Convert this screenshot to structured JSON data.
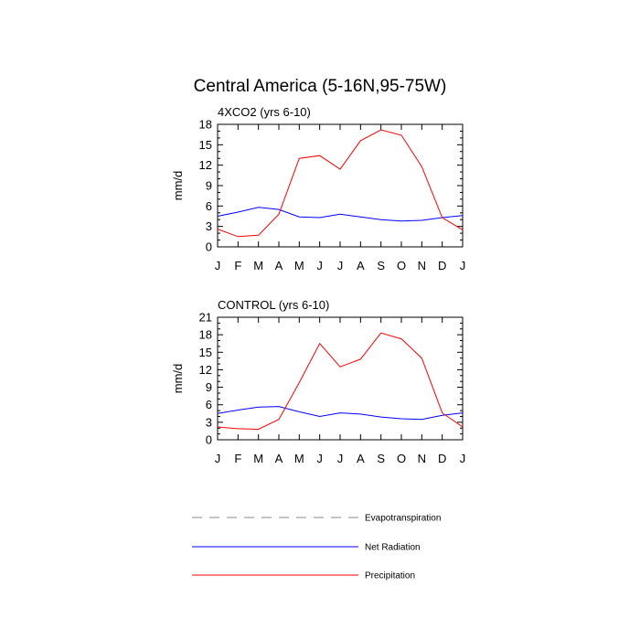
{
  "title": "Central America (5-16N,95-75W)",
  "legend": {
    "placement": "bottom",
    "entries": [
      {
        "label": "Evapotranspiration",
        "color": "#888888",
        "style": "dashed"
      },
      {
        "label": "Net Radiation",
        "color": "#0000ff",
        "style": "solid"
      },
      {
        "label": "Precipitation",
        "color": "#ff0000",
        "style": "solid"
      }
    ]
  },
  "chart_data": [
    {
      "type": "line",
      "title": "4XCO2 (yrs 6-10)",
      "ylabel": "mm/d",
      "xlabel": "",
      "x": [
        "J",
        "F",
        "M",
        "A",
        "M",
        "J",
        "J",
        "A",
        "S",
        "O",
        "N",
        "D",
        "J"
      ],
      "ylim": [
        0,
        18
      ],
      "yticks": [
        0,
        3,
        6,
        9,
        12,
        15,
        18
      ],
      "series": [
        {
          "name": "Net Radiation",
          "color": "#0000ff",
          "values": [
            4.5,
            5.1,
            5.8,
            5.5,
            4.4,
            4.3,
            4.8,
            4.4,
            4.0,
            3.8,
            3.9,
            4.3,
            4.6
          ]
        },
        {
          "name": "Precipitation",
          "color": "#ff0000",
          "values": [
            2.6,
            1.5,
            1.7,
            4.8,
            13.0,
            13.4,
            11.4,
            15.6,
            17.2,
            16.4,
            11.8,
            4.3,
            2.5
          ]
        }
      ]
    },
    {
      "type": "line",
      "title": "CONTROL (yrs 6-10)",
      "ylabel": "mm/d",
      "xlabel": "",
      "x": [
        "J",
        "F",
        "M",
        "A",
        "M",
        "J",
        "J",
        "A",
        "S",
        "O",
        "N",
        "D",
        "J"
      ],
      "ylim": [
        0,
        21
      ],
      "yticks": [
        0,
        3,
        6,
        9,
        12,
        15,
        18,
        21
      ],
      "series": [
        {
          "name": "Net Radiation",
          "color": "#0000ff",
          "values": [
            4.5,
            5.1,
            5.6,
            5.7,
            4.8,
            4.0,
            4.6,
            4.4,
            3.9,
            3.6,
            3.5,
            4.2,
            4.6
          ]
        },
        {
          "name": "Precipitation",
          "color": "#ff0000",
          "values": [
            2.2,
            1.9,
            1.8,
            3.5,
            9.8,
            16.5,
            12.5,
            13.8,
            18.3,
            17.3,
            14.0,
            4.6,
            2.2
          ]
        }
      ]
    }
  ]
}
